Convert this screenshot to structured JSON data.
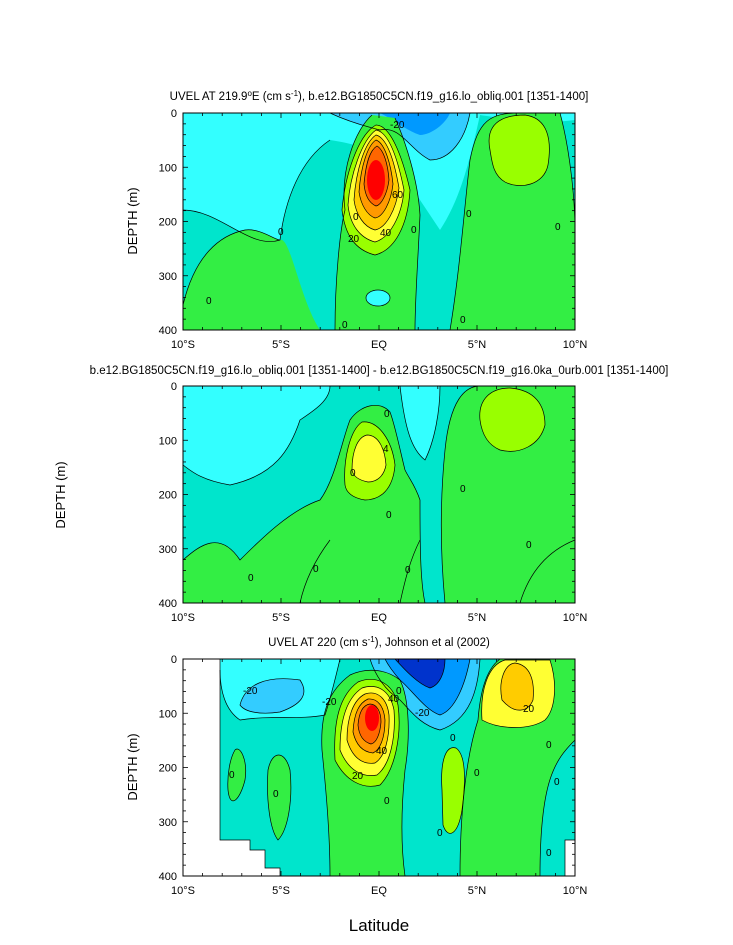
{
  "chart_data": [
    {
      "type": "heatmap",
      "subtype": "filled-contour",
      "title_main": "UVEL AT 219.9",
      "title_deg": "o",
      "title_units_a": "E (cm s",
      "title_units_exp": "-1",
      "title_rest": "), b.e12.BG1850C5CN.f19_g16.lo_obliq.001 [1351-1400]",
      "ylabel": "DEPTH (m)",
      "xlim": [
        -10,
        10
      ],
      "ylim": [
        400,
        0
      ],
      "yticks": [
        "0",
        "100",
        "200",
        "300",
        "400"
      ],
      "xticks": [
        "10°S",
        "5°S",
        "EQ",
        "5°N",
        "10°N"
      ],
      "contour_interval": 10,
      "contour_labels": [
        "-20",
        "0",
        "20",
        "40",
        "60"
      ],
      "features": [
        {
          "name": "EUC core",
          "lat": 0,
          "depth": 130,
          "value": 100
        },
        {
          "name": "surface westward",
          "lat": 2.5,
          "depth": 0,
          "value": -30
        },
        {
          "name": "NECC",
          "lat": 7.5,
          "depth": 50,
          "value": 10
        }
      ]
    },
    {
      "type": "heatmap",
      "subtype": "filled-contour",
      "title": "b.e12.BG1850C5CN.f19_g16.lo_obliq.001 [1351-1400] - b.e12.BG1850C5CN.f19_g16.0ka_0urb.001 [1351-1400]",
      "ylabel": "DEPTH (m)",
      "xlim": [
        -10,
        10
      ],
      "ylim": [
        400,
        0
      ],
      "yticks": [
        "0",
        "100",
        "200",
        "300",
        "400"
      ],
      "xticks": [
        "10°S",
        "5°S",
        "EQ",
        "5°N",
        "10°N"
      ],
      "contour_interval": 2,
      "contour_labels": [
        "0",
        "4"
      ],
      "features": [
        {
          "name": "EUC difference max",
          "lat": -0.3,
          "depth": 125,
          "value": 6
        },
        {
          "name": "NECC difference",
          "lat": 6.5,
          "depth": 50,
          "value": 4
        }
      ]
    },
    {
      "type": "heatmap",
      "subtype": "filled-contour",
      "title_main": "UVEL AT 220 (cm s",
      "title_exp": "-1",
      "title_rest": "), Johnson et al (2002)",
      "ylabel": "DEPTH (m)",
      "xlabel": "Latitude",
      "xlim": [
        -10,
        10
      ],
      "ylim": [
        400,
        0
      ],
      "yticks": [
        "0",
        "100",
        "200",
        "300",
        "400"
      ],
      "xticks": [
        "10°S",
        "5°S",
        "EQ",
        "5°N",
        "10°N"
      ],
      "contour_interval": 10,
      "contour_labels": [
        "-20",
        "20",
        "40",
        "0"
      ],
      "features": [
        {
          "name": "EUC core",
          "lat": 0,
          "depth": 110,
          "value": 110
        },
        {
          "name": "SEC north",
          "lat": 2.5,
          "depth": 10,
          "value": -60
        },
        {
          "name": "NECC",
          "lat": 6.8,
          "depth": 50,
          "value": 40
        }
      ]
    }
  ],
  "shared_ylabel": "DEPTH (m)",
  "xlabel": "Latitude",
  "colors": {
    "bg_cyan": "#00e5cc",
    "light_cyan": "#33ffff",
    "mid_blue": "#33ccff",
    "blue": "#0099ff",
    "deep_blue": "#0033cc",
    "green": "#33ee44",
    "lime": "#99ff00",
    "yellow": "#ffff33",
    "gold": "#ffcc00",
    "orange": "#ff9900",
    "dark_orange": "#ff6600",
    "red": "#ff0000"
  }
}
